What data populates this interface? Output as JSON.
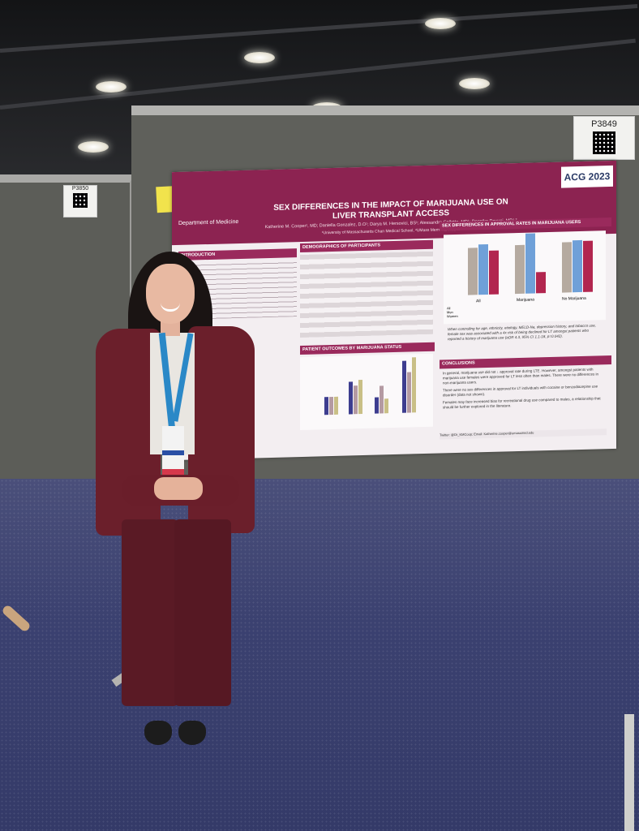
{
  "board_labels": {
    "main_board": "P3849",
    "left_board": "P3850"
  },
  "poster": {
    "title_line1": "SEX DIFFERENCES IN THE IMPACT OF MARIJUANA USE ON",
    "title_line2": "LIVER TRANSPLANT ACCESS",
    "authors": "Katherine M. Cooper¹, MD; Daniella Gonzalez, D.O¹; Darya M. Hersovici, BS¹; Alessandro Colletta, MD¹; Deepika Devuni, MD¹,²",
    "affiliations": "¹University of Massachusetts Chan Medical School, ²UMass Memorial Health",
    "department": "Department of Medicine",
    "conference_logo": "ACG 2023",
    "sections": {
      "intro": "INTRODUCTION",
      "demographics": "DEMOGRAPHICS OF PARTICIPANTS",
      "approval": "SEX DIFFERENCES IN APPROVAL RATES IN MARIJUANA USERS",
      "outcomes": "PATIENT OUTCOMES BY MARIJUANA STATUS",
      "conclusions": "CONCLUSIONS"
    },
    "approval_text": "When controlling for age, ethnicity, etiology, MELD-Na, depression history, and tobacco use, female sex was associated with a 4x risk of being declined for LT amongst patients who reported a history of marijuana use (aOR 4.3, 95% CI 1.1-18, p=0.042).",
    "conclusions": [
      "In general, marijuana use did not ↓ approval rate during LTE. However, amongst patients with marijuana use females were approved for LT less often than males. There were no differences in non-marijuana users.",
      "There were no sex differences in approval for LT individuals with cocaine or benzodiazepine use disorder (data not shown).",
      "Females may face increased bias for recreational drug use compared to males, a relationship that should be further explored in the literature."
    ],
    "contact": "Twitter: @Dr_KMCoop; Email: Katherine.cooper@umassmed.edu",
    "chart_categories": [
      "All",
      "Marijuana",
      "No Marijuana"
    ],
    "chart_legend": [
      "All",
      "Men",
      "Women"
    ]
  },
  "colors": {
    "poster_maroon": "#8c2351",
    "blazer": "#6b1f2b",
    "carpet": "#3b4170",
    "lanyard": "#2a88c7"
  }
}
